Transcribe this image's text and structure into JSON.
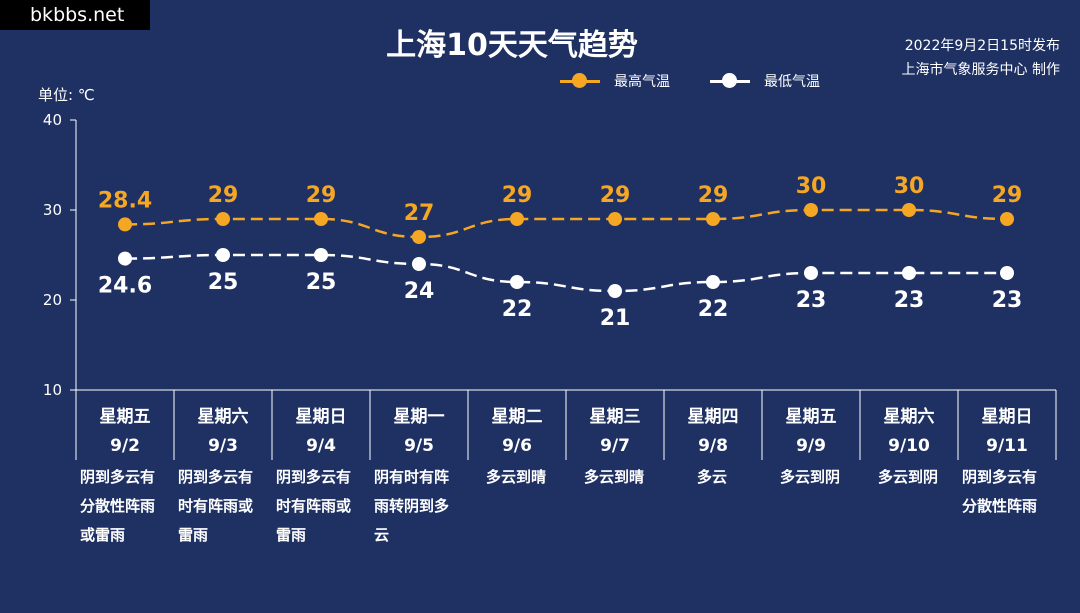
{
  "watermark": "bkbbs.net",
  "title": "上海10天天气趋势",
  "publish": {
    "line1": "2022年9月2日15时发布",
    "line2": "上海市气象服务中心 制作"
  },
  "unit_label": "单位: ℃",
  "colors": {
    "background": "#1f3163",
    "high": "#f5a623",
    "low": "#ffffff",
    "axis": "#ffffff"
  },
  "chart_data": {
    "type": "line",
    "categories": [
      "9/2",
      "9/3",
      "9/4",
      "9/5",
      "9/6",
      "9/7",
      "9/8",
      "9/9",
      "9/10",
      "9/11"
    ],
    "weekdays": [
      "星期五",
      "星期六",
      "星期日",
      "星期一",
      "星期二",
      "星期三",
      "星期四",
      "星期五",
      "星期六",
      "星期日"
    ],
    "series": [
      {
        "name": "最高气温",
        "values": [
          28.4,
          29,
          29,
          27,
          29,
          29,
          29,
          30,
          30,
          29
        ],
        "labels": [
          "28.4",
          "29",
          "29",
          "27",
          "29",
          "29",
          "29",
          "30",
          "30",
          "29"
        ]
      },
      {
        "name": "最低气温",
        "values": [
          24.6,
          25,
          25,
          24,
          22,
          21,
          22,
          23,
          23,
          23
        ],
        "labels": [
          "24.6",
          "25",
          "25",
          "24",
          "22",
          "21",
          "22",
          "23",
          "23",
          "23"
        ]
      }
    ],
    "ylim": [
      10,
      40
    ],
    "yticks": [
      "10",
      "20",
      "30",
      "40"
    ],
    "legend_position": "top-right",
    "grid": false
  },
  "conditions": [
    [
      "阴到多云有",
      "分散性阵雨",
      "或雷雨"
    ],
    [
      "阴到多云有",
      "时有阵雨或",
      "雷雨"
    ],
    [
      "阴到多云有",
      "时有阵雨或",
      "雷雨"
    ],
    [
      "阴有时有阵",
      "雨转阴到多",
      "云"
    ],
    [
      "多云到晴"
    ],
    [
      "多云到晴"
    ],
    [
      "多云"
    ],
    [
      "多云到阴"
    ],
    [
      "多云到阴"
    ],
    [
      "阴到多云有",
      "分散性阵雨"
    ]
  ]
}
